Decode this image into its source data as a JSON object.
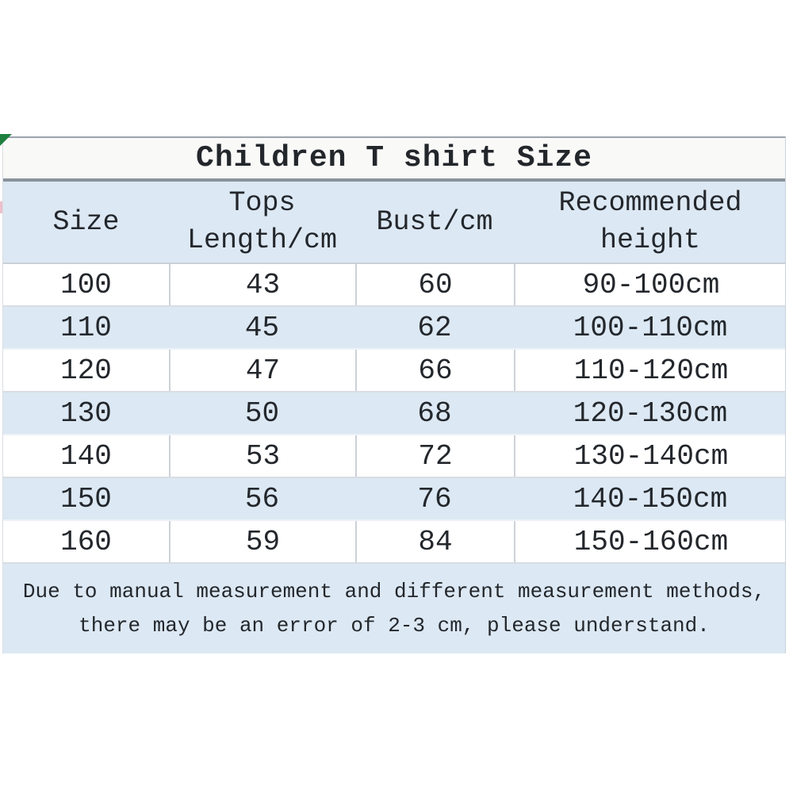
{
  "title": "Children T shirt Size",
  "table": {
    "columns": [
      {
        "lines": [
          "Size",
          ""
        ]
      },
      {
        "lines": [
          "Tops",
          "Length/cm"
        ]
      },
      {
        "lines": [
          "Bust/cm",
          ""
        ]
      },
      {
        "lines": [
          "Recommended",
          "height"
        ]
      }
    ],
    "rows": [
      [
        "100",
        "43",
        "60",
        "90-100cm"
      ],
      [
        "110",
        "45",
        "62",
        "100-110cm"
      ],
      [
        "120",
        "47",
        "66",
        "110-120cm"
      ],
      [
        "130",
        "50",
        "68",
        "120-130cm"
      ],
      [
        "140",
        "53",
        "72",
        "130-140cm"
      ],
      [
        "150",
        "56",
        "76",
        "140-150cm"
      ],
      [
        "160",
        "59",
        "84",
        "150-160cm"
      ]
    ]
  },
  "note": {
    "line1": "Due to manual measurement and different measurement methods,",
    "line2": "there may be an error of 2-3 cm, please understand."
  },
  "colors": {
    "row_blue": "#dce8f3",
    "row_white": "#ffffff",
    "title_bg": "#f9f9f7",
    "text": "#23272c",
    "divider_dark": "#8a939b",
    "divider_light": "#ccd2d8",
    "corner_green": "#1e8040",
    "corner_pink": "#e9b4c2"
  }
}
